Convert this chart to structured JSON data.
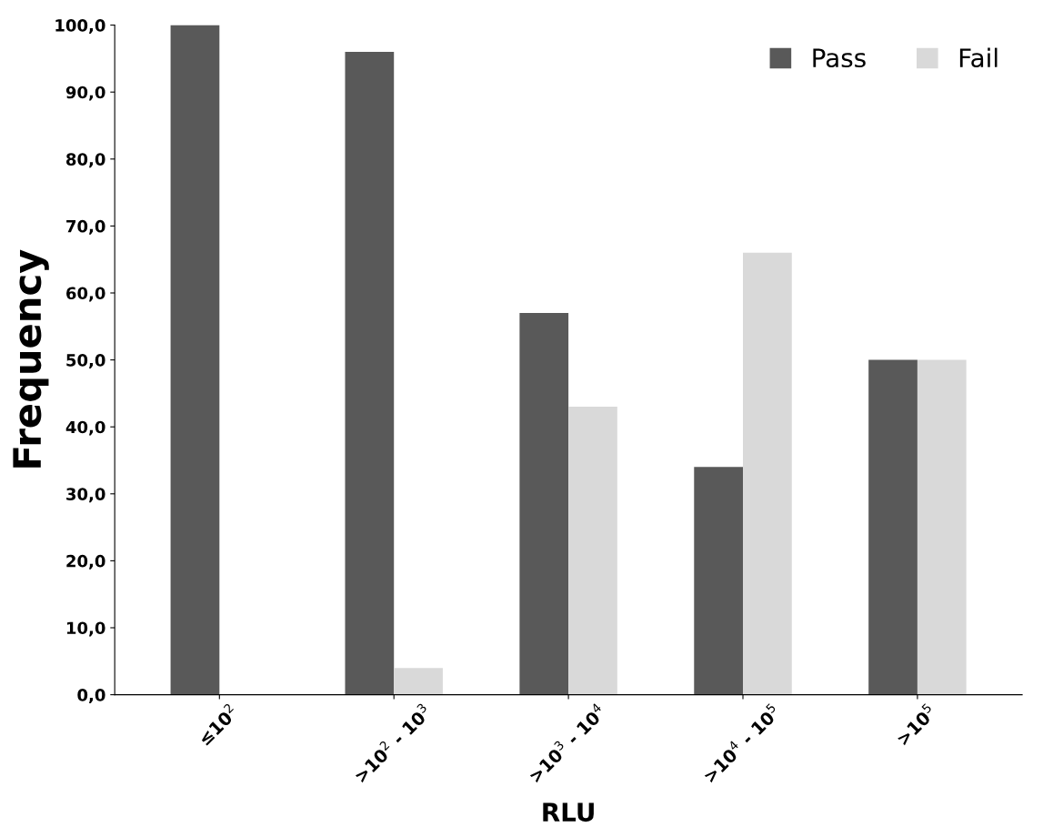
{
  "chart_data": {
    "type": "bar",
    "xlabel": "RLU",
    "ylabel": "Frequency",
    "categories": [
      "≤10$^{2}$",
      ">10$^{2}$ - 10$^{3}$",
      ">10$^{3}$ - 10$^{4}$",
      ">10$^{4}$ - 10$^{5}$",
      ">10$^{5}$"
    ],
    "series": [
      {
        "name": "Pass",
        "color": "#595959",
        "values": [
          100,
          96,
          57,
          34,
          50
        ]
      },
      {
        "name": "Fail",
        "color": "#d9d9d9",
        "values": [
          0,
          4,
          43,
          66,
          50
        ]
      }
    ],
    "ylim": [
      0,
      100
    ],
    "yticks": [
      {
        "value": 0,
        "label": "0,0"
      },
      {
        "value": 10,
        "label": "10,0"
      },
      {
        "value": 20,
        "label": "20,0"
      },
      {
        "value": 30,
        "label": "30,0"
      },
      {
        "value": 40,
        "label": "40,0"
      },
      {
        "value": 50,
        "label": "50,0"
      },
      {
        "value": 60,
        "label": "60,0"
      },
      {
        "value": 70,
        "label": "70,0"
      },
      {
        "value": 80,
        "label": "80,0"
      },
      {
        "value": 90,
        "label": "90,0"
      },
      {
        "value": 100,
        "label": "100,0"
      }
    ],
    "grid": false,
    "legend": "top right"
  }
}
